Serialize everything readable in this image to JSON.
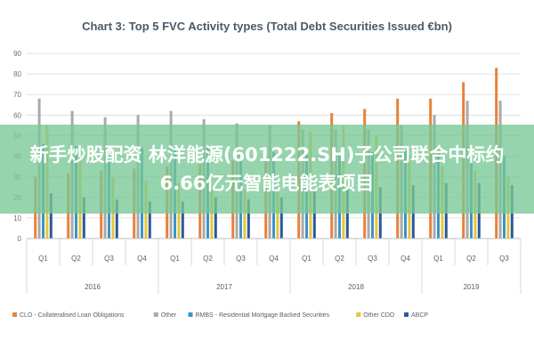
{
  "chart_data": {
    "type": "bar",
    "title": "Chart 3: Top 5 FVC Activity types (Total Debt Securities Issued €bn)",
    "ylim": [
      0,
      90
    ],
    "yticks": [
      0,
      10,
      20,
      30,
      40,
      50,
      60,
      70,
      80,
      90
    ],
    "categories": [
      "Q1",
      "Q2",
      "Q3",
      "Q4",
      "Q1",
      "Q2",
      "Q3",
      "Q4",
      "Q1",
      "Q2",
      "Q3",
      "Q4",
      "Q1",
      "Q2",
      "Q3"
    ],
    "years": [
      {
        "label": "2016",
        "span": 4
      },
      {
        "label": "2017",
        "span": 4
      },
      {
        "label": "2018",
        "span": 4
      },
      {
        "label": "2019",
        "span": 3
      }
    ],
    "series": [
      {
        "name": "CLO - Collateralised Loan Obligations",
        "color": "#e8823a",
        "values": [
          30,
          32,
          33,
          34,
          35,
          36,
          38,
          40,
          57,
          61,
          63,
          68,
          68,
          76,
          83
        ]
      },
      {
        "name": "Other",
        "color": "#a9a9a9",
        "values": [
          68,
          62,
          59,
          60,
          62,
          58,
          56,
          55,
          53,
          53,
          53,
          55,
          60,
          67,
          67
        ]
      },
      {
        "name": "RMBS - Residential Mortgage Backed Securities",
        "color": "#3a94c9",
        "values": [
          46,
          45,
          43,
          44,
          44,
          44,
          42,
          42,
          41,
          41,
          42,
          43,
          43,
          42,
          40
        ]
      },
      {
        "name": "Other CDO",
        "color": "#e8c53a",
        "values": [
          55,
          40,
          30,
          28,
          27,
          25,
          24,
          23,
          52,
          55,
          50,
          40,
          35,
          33,
          30
        ]
      },
      {
        "name": "ABCP",
        "color": "#2a5a9a",
        "values": [
          22,
          20,
          19,
          18,
          18,
          20,
          19,
          20,
          23,
          24,
          25,
          26,
          27,
          27,
          26
        ]
      }
    ],
    "grid": true,
    "legend_position": "bottom"
  },
  "banner": {
    "text": "新手炒股配资 林洋能源(601222.SH)子公司联合中标约6.66亿元智能电能表项目"
  }
}
